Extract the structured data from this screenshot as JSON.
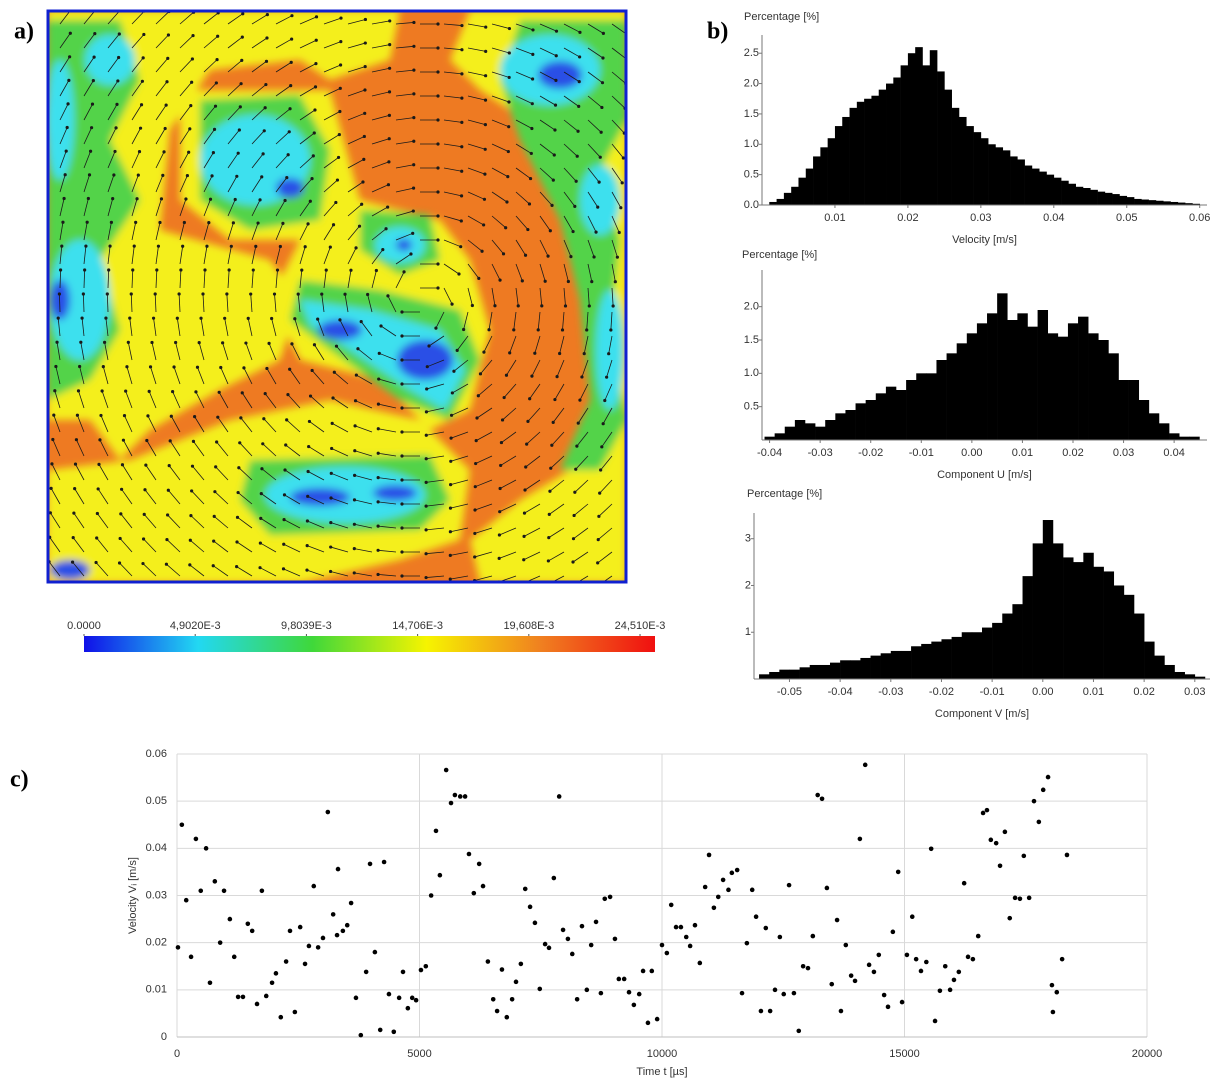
{
  "chart_data": [
    {
      "type": "contour",
      "panel": "a)",
      "clim": [
        0,
        0.02517
      ],
      "colorbar_ticks": [
        {
          "value": 0,
          "label": "0.0000"
        },
        {
          "value": 0.004902,
          "label": "4,9020E-3"
        },
        {
          "value": 0.0098039,
          "label": "9,8039E-3"
        },
        {
          "value": 0.014706,
          "label": "14,706E-3"
        },
        {
          "value": 0.019608,
          "label": "19,608E-3"
        },
        {
          "value": 0.02451,
          "label": "24,510E-3"
        }
      ],
      "colors": [
        "#1010e8",
        "#22d8f2",
        "#3fd83a",
        "#f6f400",
        "#f08020",
        "#f01010"
      ]
    },
    {
      "type": "histogram",
      "panel": "b)",
      "ylabel": "Percentage [%]",
      "xlabel": "Velocity [m/s]",
      "color": "#000000",
      "xlim": [
        0,
        0.061
      ],
      "ylim": [
        0,
        2.8
      ],
      "xticks": [
        0.01,
        0.02,
        0.03,
        0.04,
        0.05,
        0.06
      ],
      "yticks": [
        {
          "value": 0,
          "label": "0.0"
        },
        0.5,
        {
          "value": 1,
          "label": "1.0"
        },
        1.5,
        {
          "value": 2,
          "label": "2.0"
        },
        2.5
      ],
      "bins": [
        0.001,
        0.002,
        0.003,
        0.004,
        0.005,
        0.006,
        0.007,
        0.008,
        0.009,
        0.01,
        0.011,
        0.012,
        0.013,
        0.014,
        0.015,
        0.016,
        0.017,
        0.018,
        0.019,
        0.02,
        0.021,
        0.022,
        0.023,
        0.024,
        0.025,
        0.026,
        0.027,
        0.028,
        0.029,
        0.03,
        0.031,
        0.032,
        0.033,
        0.034,
        0.035,
        0.036,
        0.037,
        0.038,
        0.039,
        0.04,
        0.041,
        0.042,
        0.043,
        0.044,
        0.045,
        0.046,
        0.047,
        0.048,
        0.049,
        0.05,
        0.051,
        0.052,
        0.053,
        0.054,
        0.055,
        0.056,
        0.057,
        0.058,
        0.059,
        0.06
      ],
      "values": [
        0.05,
        0.1,
        0.2,
        0.3,
        0.45,
        0.6,
        0.8,
        0.95,
        1.1,
        1.3,
        1.45,
        1.6,
        1.7,
        1.75,
        1.8,
        1.9,
        2.0,
        2.1,
        2.3,
        2.5,
        2.6,
        2.3,
        2.55,
        2.2,
        1.9,
        1.6,
        1.45,
        1.3,
        1.2,
        1.1,
        1.0,
        0.95,
        0.9,
        0.8,
        0.75,
        0.65,
        0.6,
        0.55,
        0.5,
        0.45,
        0.4,
        0.35,
        0.3,
        0.28,
        0.25,
        0.22,
        0.2,
        0.18,
        0.15,
        0.13,
        0.1,
        0.09,
        0.08,
        0.07,
        0.06,
        0.05,
        0.04,
        0.03,
        0.02
      ]
    },
    {
      "type": "histogram",
      "ylabel": "Percentage [%]",
      "xlabel": "Component U [m/s]",
      "color": "#000000",
      "xlim": [
        -0.0415,
        0.0465
      ],
      "ylim": [
        0,
        2.55
      ],
      "xticks": [
        -0.04,
        -0.03,
        -0.02,
        -0.01,
        {
          "value": 0,
          "label": "0.00"
        },
        0.01,
        0.02,
        0.03,
        0.04
      ],
      "yticks": [
        0.5,
        {
          "value": 1,
          "label": "1.0"
        },
        1.5,
        {
          "value": 2,
          "label": "2.0"
        }
      ],
      "bins": [
        -0.041,
        -0.039,
        -0.037,
        -0.035,
        -0.033,
        -0.031,
        -0.029,
        -0.027,
        -0.025,
        -0.023,
        -0.021,
        -0.019,
        -0.017,
        -0.015,
        -0.013,
        -0.011,
        -0.009,
        -0.007,
        -0.005,
        -0.003,
        -0.001,
        0.001,
        0.003,
        0.005,
        0.007,
        0.009,
        0.011,
        0.013,
        0.015,
        0.017,
        0.019,
        0.021,
        0.023,
        0.025,
        0.027,
        0.029,
        0.031,
        0.033,
        0.035,
        0.037,
        0.039,
        0.041,
        0.043,
        0.045
      ],
      "values": [
        0.05,
        0.1,
        0.2,
        0.3,
        0.25,
        0.2,
        0.3,
        0.4,
        0.45,
        0.55,
        0.6,
        0.7,
        0.8,
        0.75,
        0.9,
        1.0,
        1.0,
        1.2,
        1.3,
        1.45,
        1.6,
        1.75,
        1.9,
        2.2,
        1.8,
        1.9,
        1.7,
        1.95,
        1.6,
        1.55,
        1.75,
        1.85,
        1.6,
        1.5,
        1.3,
        0.9,
        0.9,
        0.6,
        0.4,
        0.25,
        0.1,
        0.05,
        0.05
      ]
    },
    {
      "type": "histogram",
      "ylabel": "Percentage [%]",
      "xlabel": "Component V [m/s]",
      "color": "#000000",
      "xlim": [
        -0.057,
        0.033
      ],
      "ylim": [
        0,
        3.55
      ],
      "xticks": [
        -0.05,
        -0.04,
        -0.03,
        -0.02,
        -0.01,
        {
          "value": 0,
          "label": "0.00"
        },
        0.01,
        0.02,
        0.03
      ],
      "yticks": [
        1,
        2,
        3
      ],
      "bins": [
        -0.056,
        -0.054,
        -0.052,
        -0.05,
        -0.048,
        -0.046,
        -0.044,
        -0.042,
        -0.04,
        -0.038,
        -0.036,
        -0.034,
        -0.032,
        -0.03,
        -0.028,
        -0.026,
        -0.024,
        -0.022,
        -0.02,
        -0.018,
        -0.016,
        -0.014,
        -0.012,
        -0.01,
        -0.008,
        -0.006,
        -0.004,
        -0.002,
        0,
        0.002,
        0.004,
        0.006,
        0.008,
        0.01,
        0.012,
        0.014,
        0.016,
        0.018,
        0.02,
        0.022,
        0.024,
        0.026,
        0.028,
        0.03,
        0.032
      ],
      "values": [
        0.1,
        0.15,
        0.2,
        0.2,
        0.25,
        0.3,
        0.3,
        0.35,
        0.4,
        0.4,
        0.45,
        0.5,
        0.55,
        0.6,
        0.6,
        0.7,
        0.75,
        0.8,
        0.85,
        0.9,
        1.0,
        1.0,
        1.1,
        1.2,
        1.4,
        1.6,
        2.2,
        2.9,
        3.4,
        2.9,
        2.6,
        2.5,
        2.7,
        2.4,
        2.3,
        2.0,
        1.8,
        1.4,
        0.8,
        0.5,
        0.3,
        0.15,
        0.1,
        0.05
      ]
    },
    {
      "type": "scatter",
      "panel": "c)",
      "xlabel": "Time t [µs]",
      "ylabel": "Velocity Vᵢ [m/s]",
      "color": "#000000",
      "grid": true,
      "xlim": [
        0,
        20000
      ],
      "ylim": [
        0,
        0.06
      ],
      "xticks": [
        0,
        5000,
        10000,
        15000,
        20000
      ],
      "yticks": [
        0,
        0.01,
        0.02,
        0.03,
        0.04,
        0.05,
        0.06
      ],
      "x": [
        20,
        100,
        190,
        290,
        390,
        490,
        600,
        680,
        780,
        890,
        970,
        1090,
        1180,
        1260,
        1360,
        1460,
        1550,
        1650,
        1750,
        1840,
        1960,
        2040,
        2140,
        2250,
        2330,
        2430,
        2540,
        2640,
        2720,
        2820,
        2910,
        3010,
        3110,
        3220,
        3300,
        3320,
        3420,
        3510,
        3590,
        3690,
        3790,
        3900,
        3980,
        4080,
        4190,
        4270,
        4370,
        4470,
        4580,
        4660,
        4760,
        4850,
        4930,
        5030,
        5130,
        5240,
        5340,
        5420,
        5550,
        5650,
        5730,
        5840,
        5940,
        6020,
        6120,
        6230,
        6310,
        6410,
        6520,
        6600,
        6700,
        6800,
        6910,
        6990,
        7090,
        7180,
        7280,
        7380,
        7480,
        7590,
        7670,
        7770,
        7880,
        7960,
        8060,
        8150,
        8250,
        8350,
        8450,
        8540,
        8640,
        8740,
        8820,
        8930,
        9030,
        9110,
        9220,
        9320,
        9420,
        9530,
        9610,
        9710,
        9790,
        9900,
        10000,
        10100,
        10190,
        10290,
        10390,
        10500,
        10580,
        10680,
        10780,
        10890,
        10970,
        11070,
        11160,
        11260,
        11370,
        11440,
        11550,
        11650,
        11750,
        11860,
        11940,
        12040,
        12140,
        12230,
        12330,
        12430,
        12510,
        12620,
        12720,
        12820,
        12910,
        13010,
        13110,
        13210,
        13300,
        13400,
        13500,
        13610,
        13690,
        13790,
        13900,
        13980,
        14080,
        14190,
        14270,
        14370,
        14470,
        14580,
        14660,
        14760,
        14870,
        14950,
        15050,
        15160,
        15240,
        15340,
        15450,
        15550,
        15630,
        15730,
        15840,
        15940,
        16020,
        16120,
        16230,
        16310,
        16410,
        16520,
        16620,
        16700,
        16780,
        16890,
        16970,
        17070,
        17170,
        17280,
        17380,
        17460,
        17570,
        17670,
        17770,
        17860,
        17960,
        18040,
        18060,
        18140,
        18250,
        18350
      ],
      "values": [
        0.019,
        0.045,
        0.029,
        0.017,
        0.042,
        0.031,
        0.04,
        0.0115,
        0.033,
        0.02,
        0.031,
        0.025,
        0.017,
        0.0085,
        0.0085,
        0.024,
        0.0225,
        0.007,
        0.031,
        0.0087,
        0.0115,
        0.0135,
        0.0042,
        0.016,
        0.0225,
        0.0053,
        0.0233,
        0.0155,
        0.0193,
        0.032,
        0.019,
        0.021,
        0.0477,
        0.026,
        0.0216,
        0.0356,
        0.0225,
        0.0237,
        0.0284,
        0.0083,
        0.0004,
        0.0138,
        0.0367,
        0.018,
        0.0015,
        0.0371,
        0.0091,
        0.0011,
        0.0083,
        0.0138,
        0.0061,
        0.0083,
        0.0078,
        0.0142,
        0.015,
        0.03,
        0.0437,
        0.0343,
        0.0566,
        0.0496,
        0.0513,
        0.051,
        0.051,
        0.0388,
        0.0305,
        0.0367,
        0.032,
        0.016,
        0.008,
        0.0055,
        0.0143,
        0.0042,
        0.008,
        0.0117,
        0.0155,
        0.0314,
        0.0276,
        0.0242,
        0.0102,
        0.0197,
        0.0189,
        0.0337,
        0.051,
        0.0227,
        0.0208,
        0.0176,
        0.008,
        0.0235,
        0.01,
        0.0195,
        0.0244,
        0.0093,
        0.0293,
        0.0297,
        0.0208,
        0.0123,
        0.0123,
        0.0095,
        0.0068,
        0.0091,
        0.014,
        0.003,
        0.014,
        0.0038,
        0.0195,
        0.0178,
        0.028,
        0.0233,
        0.0233,
        0.0212,
        0.0193,
        0.0237,
        0.0157,
        0.0318,
        0.0386,
        0.0274,
        0.0297,
        0.0333,
        0.0312,
        0.0348,
        0.0354,
        0.0093,
        0.0199,
        0.0312,
        0.0255,
        0.0055,
        0.0231,
        0.0055,
        0.01,
        0.0212,
        0.0091,
        0.0322,
        0.0093,
        0.0013,
        0.015,
        0.0146,
        0.0214,
        0.0513,
        0.0505,
        0.0316,
        0.0112,
        0.0248,
        0.0055,
        0.0195,
        0.013,
        0.0119,
        0.042,
        0.0577,
        0.0153,
        0.0138,
        0.0174,
        0.0089,
        0.0064,
        0.0223,
        0.035,
        0.0074,
        0.0174,
        0.0255,
        0.0165,
        0.014,
        0.0159,
        0.0399,
        0.0034,
        0.0098,
        0.015,
        0.01,
        0.0121,
        0.0138,
        0.0326,
        0.017,
        0.0165,
        0.0214,
        0.0475,
        0.0481,
        0.0418,
        0.0411,
        0.0363,
        0.0435,
        0.0252,
        0.0295,
        0.0293,
        0.0384,
        0.0295,
        0.05,
        0.0456,
        0.0524,
        0.0551,
        0.011,
        0.0053,
        0.0095,
        0.0165,
        0.0386
      ]
    }
  ]
}
